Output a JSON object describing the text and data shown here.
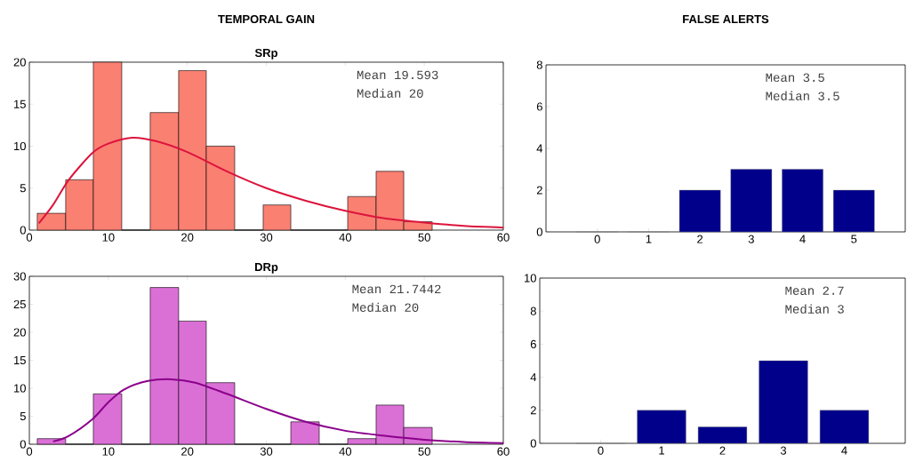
{
  "chart_data": [
    {
      "type": "histogram",
      "title": "TEMPORAL GAIN",
      "subtitle": "SRp",
      "xlim": [
        0,
        60
      ],
      "xticks": [
        0,
        10,
        20,
        30,
        40,
        50,
        60
      ],
      "ylim": [
        0,
        20
      ],
      "yticks": [
        0,
        5,
        10,
        15,
        20
      ],
      "annotations": [
        "Mean 19.593",
        "Median 20"
      ],
      "series": [
        {
          "type": "histogram",
          "color": "#fa8072",
          "bins": [
            1,
            4.6,
            8.1,
            11.7,
            15.3,
            18.9,
            22.4,
            26,
            29.6,
            33.1,
            40.3,
            43.9,
            47.4,
            51
          ],
          "values": [
            2,
            6,
            20,
            0,
            14,
            19,
            10,
            0,
            3,
            0,
            4,
            7,
            1
          ]
        },
        {
          "type": "line",
          "color": "#dc143c",
          "x": [
            1.2,
            3,
            5,
            8,
            10,
            13,
            16,
            20,
            25,
            30,
            35,
            40,
            45,
            50,
            55,
            60
          ],
          "values": [
            0.8,
            3,
            6,
            9.2,
            10.3,
            11,
            10.6,
            9.3,
            7,
            5,
            3.5,
            2.3,
            1.4,
            0.9,
            0.5,
            0.3
          ]
        }
      ]
    },
    {
      "type": "bar",
      "title": "FALSE ALERTS",
      "categories": [
        "0",
        "1",
        "2",
        "3",
        "4",
        "5"
      ],
      "values": [
        0,
        0,
        2,
        3,
        3,
        2
      ],
      "color": "#00008b",
      "ylim": [
        0,
        8
      ],
      "yticks": [
        0,
        2,
        4,
        6,
        8
      ],
      "annotations": [
        "Mean 3.5",
        "Median 3.5"
      ]
    },
    {
      "type": "histogram",
      "subtitle": "DRp",
      "xlim": [
        0,
        60
      ],
      "xticks": [
        0,
        10,
        20,
        30,
        40,
        50,
        60
      ],
      "ylim": [
        0,
        30
      ],
      "yticks": [
        0,
        5,
        10,
        15,
        20,
        25,
        30
      ],
      "annotations": [
        "Mean 21.7442",
        "Median 20"
      ],
      "series": [
        {
          "type": "histogram",
          "color": "#da70d6",
          "bins": [
            1,
            4.6,
            8.1,
            11.7,
            15.3,
            18.9,
            22.4,
            26,
            33.1,
            36.7,
            40.3,
            43.9,
            47.4,
            51
          ],
          "values": [
            1,
            0,
            9,
            0,
            28,
            22,
            11,
            0,
            4,
            0,
            1,
            7,
            3
          ]
        },
        {
          "type": "line",
          "color": "#8b008b",
          "x": [
            3,
            5,
            8,
            10,
            12,
            15,
            18,
            21,
            25,
            30,
            35,
            40,
            45,
            50,
            55,
            60
          ],
          "values": [
            0.5,
            1.5,
            4.5,
            7.5,
            9.8,
            11.3,
            11.6,
            11,
            9,
            6.3,
            4,
            2.4,
            1.5,
            0.8,
            0.4,
            0.2
          ]
        }
      ]
    },
    {
      "type": "bar",
      "categories": [
        "0",
        "1",
        "2",
        "3",
        "4"
      ],
      "values": [
        0,
        2,
        1,
        5,
        2
      ],
      "color": "#00008b",
      "ylim": [
        0,
        10
      ],
      "yticks": [
        0,
        2,
        4,
        6,
        8,
        10
      ],
      "annotations": [
        "Mean 2.7",
        "Median 3"
      ]
    }
  ]
}
